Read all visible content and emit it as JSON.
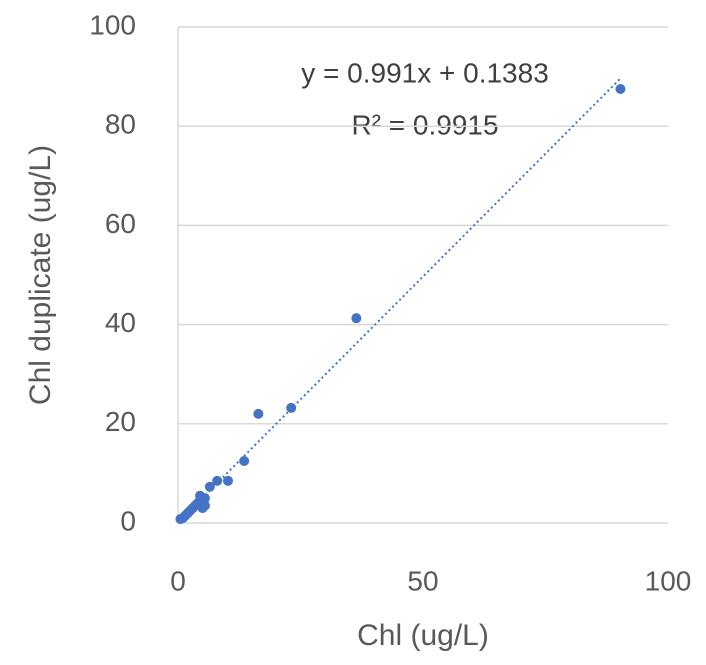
{
  "chart_data": {
    "type": "scatter",
    "x_label": "Chl (ug/L)",
    "y_label": "Chl duplicate (ug/L)",
    "color": "#4472c4",
    "x": [
      90.3,
      36.4,
      23.1,
      16.4,
      13.5,
      10.2,
      8.0,
      6.5,
      5.5,
      5.5,
      5.0,
      4.5,
      5.0,
      4.0,
      3.5,
      3.0,
      2.5,
      2.0,
      1.5,
      1.0,
      0.5
    ],
    "values": [
      87.5,
      41.3,
      23.2,
      22.0,
      12.5,
      8.5,
      8.5,
      7.3,
      5.0,
      3.5,
      4.5,
      5.5,
      3.0,
      4.0,
      3.5,
      3.0,
      2.5,
      2.0,
      1.5,
      1.0,
      0.8
    ],
    "xlim": [
      0,
      100
    ],
    "ylim": [
      0,
      100
    ],
    "xticks": [
      0,
      50,
      100
    ],
    "yticks": [
      0,
      20,
      40,
      60,
      80,
      100
    ],
    "grid": true,
    "trendline": {
      "slope": 0.991,
      "intercept": 0.1383,
      "label": "y = 0.991x + 0.1383",
      "r2_label": "R² = 0.9915"
    }
  }
}
